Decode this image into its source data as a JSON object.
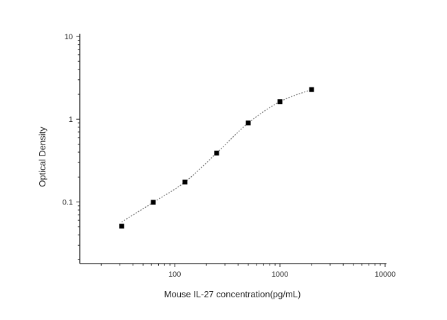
{
  "chart_data": {
    "type": "scatter",
    "title": "",
    "xlabel": "Mouse IL-27 concentration(pg/mL)",
    "ylabel": "Optical Density",
    "x_scale": "log",
    "y_scale": "log",
    "xlim": [
      12.5,
      10000
    ],
    "ylim": [
      0.018,
      10
    ],
    "x_ticks": [
      100,
      1000,
      10000
    ],
    "x_tick_labels": [
      "100",
      "1000",
      "10000"
    ],
    "y_ticks": [
      0.1,
      1,
      10
    ],
    "y_tick_labels": [
      "0.1",
      "1",
      "10"
    ],
    "grid": false,
    "series": [
      {
        "x": [
          31.25,
          62.5,
          125,
          250,
          500,
          1000,
          2000
        ],
        "y": [
          0.051,
          0.099,
          0.174,
          0.39,
          0.9,
          1.63,
          2.28
        ],
        "marker": "square",
        "fit_line": "dotted"
      }
    ],
    "colors": {
      "marker": "#000000",
      "curve": "#777777",
      "axis": "#222222"
    }
  }
}
